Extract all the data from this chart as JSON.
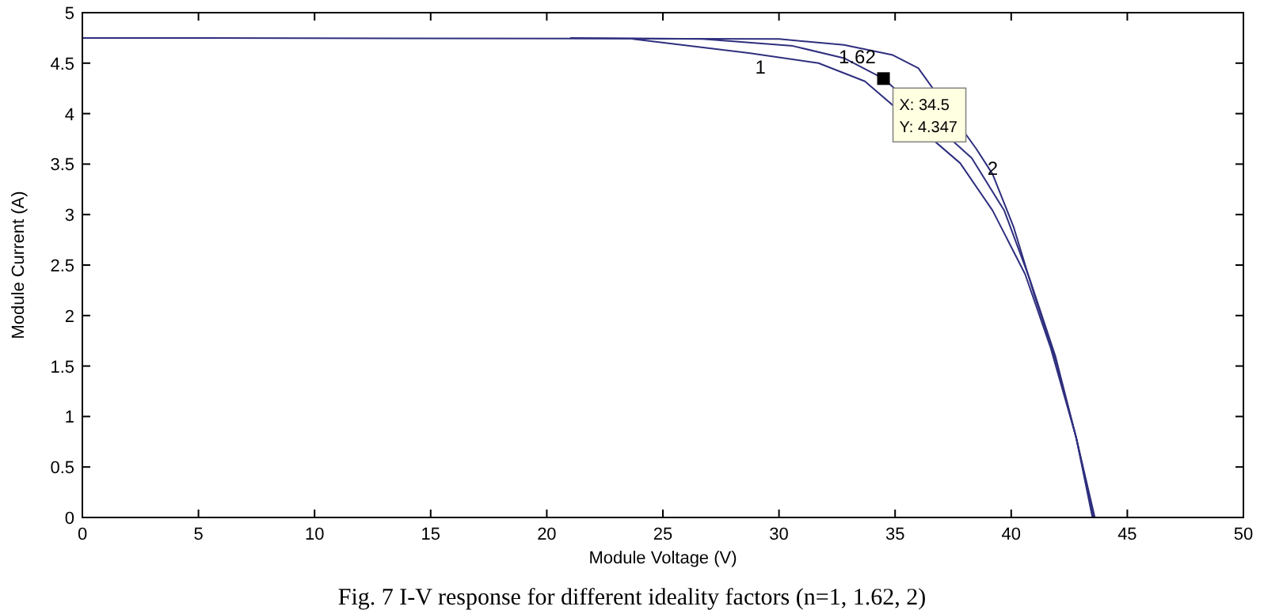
{
  "chart_data": {
    "type": "line",
    "title": "Fig. 7  I-V response for different ideality factors (n=1, 1.62, 2)",
    "xlabel": "Module Voltage (V)",
    "ylabel": "Module Current (A)",
    "xlim": [
      0,
      50
    ],
    "ylim": [
      0,
      5
    ],
    "xticks": [
      0,
      5,
      10,
      15,
      20,
      25,
      30,
      35,
      40,
      45,
      50
    ],
    "yticks": [
      0,
      0.5,
      1,
      1.5,
      2,
      2.5,
      3,
      3.5,
      4,
      4.5,
      5
    ],
    "grid": false,
    "line_style": "solid",
    "marker": "none",
    "series": [
      {
        "color": "#2f2f7f",
        "x": [
          0,
          30.0,
          32.8,
          34.9,
          36.0,
          38.5,
          39.2,
          40.1,
          41.0,
          41.9,
          42.8,
          43.6
        ],
        "values": [
          4.75,
          4.74,
          4.68,
          4.58,
          4.45,
          3.65,
          3.4,
          2.88,
          2.2,
          1.57,
          0.79,
          0
        ]
      },
      {
        "color": "#2f2f7f",
        "x": [
          21,
          26.7,
          30.6,
          32.8,
          34.5,
          38.3,
          39.7,
          40.8,
          41.9,
          42.8,
          43.55
        ],
        "values": [
          4.75,
          4.74,
          4.67,
          4.55,
          4.347,
          3.56,
          3.04,
          2.36,
          1.6,
          0.79,
          0
        ]
      },
      {
        "color": "#2f2f7f",
        "x": [
          23.7,
          28.7,
          31.7,
          33.7,
          37.8,
          39.2,
          40.6,
          41.7,
          42.8,
          43.5
        ],
        "values": [
          4.74,
          4.6,
          4.5,
          4.32,
          3.51,
          3.04,
          2.41,
          1.68,
          0.79,
          0
        ]
      },
      {
        "type": "scatter",
        "marker": "square",
        "color": "#000000",
        "x": [
          34.5
        ],
        "values": [
          4.347
        ]
      }
    ],
    "annotations": [
      {
        "text": "1.62",
        "x": 32.3,
        "y": 4.7
      },
      {
        "text": "1",
        "x": 28.7,
        "y": 4.6
      },
      {
        "text": "2",
        "x": 38.7,
        "y": 3.6
      },
      {
        "text": "X: 34.5\nY: 4.347",
        "x": 34.5,
        "y": 4.347
      }
    ]
  }
}
